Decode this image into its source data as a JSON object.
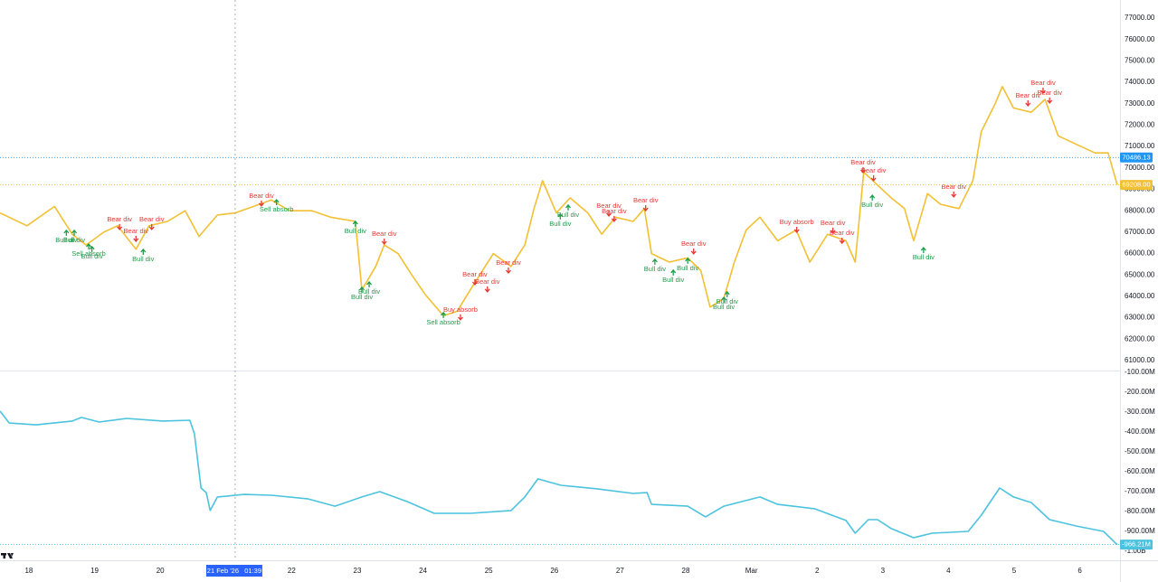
{
  "chart_data": [
    {
      "type": "line",
      "xlim": [
        17.56,
        34.57
      ],
      "xticks": [
        18,
        19,
        20,
        21,
        22,
        23,
        24,
        25,
        26,
        27,
        28,
        {
          "value": 29,
          "label": "Mar"
        },
        {
          "value": 30,
          "label": "2"
        },
        {
          "value": 31,
          "label": "3"
        },
        {
          "value": 32,
          "label": "4"
        },
        {
          "value": 33,
          "label": "5"
        },
        {
          "value": 34,
          "label": "6"
        }
      ],
      "ylim": [
        61000,
        77000
      ],
      "yticks": [
        {
          "value": 61000,
          "label": "61000.00"
        },
        {
          "value": 62000,
          "label": "62000.00"
        },
        {
          "value": 63000,
          "label": "63000.00"
        },
        {
          "value": 64000,
          "label": "64000.00"
        },
        {
          "value": 65000,
          "label": "65000.00"
        },
        {
          "value": 66000,
          "label": "66000.00"
        },
        {
          "value": 67000,
          "label": "67000.00"
        },
        {
          "value": 68000,
          "label": "68000.00"
        },
        {
          "value": 69000,
          "label": "69000.00"
        },
        {
          "value": 70000,
          "label": "70000.00"
        },
        {
          "value": 71000,
          "label": "71000.00"
        },
        {
          "value": 72000,
          "label": "72000.00"
        },
        {
          "value": 73000,
          "label": "73000.00"
        },
        {
          "value": 74000,
          "label": "74000.00"
        },
        {
          "value": 75000,
          "label": "75000.00"
        },
        {
          "value": 76000,
          "label": "76000.00"
        },
        {
          "value": 77000,
          "label": "77000.00"
        }
      ],
      "grid": true,
      "series": [
        {
          "color": "#f2c033",
          "x": [
            17.56,
            17.97,
            18.39,
            18.66,
            18.87,
            19.14,
            19.35,
            19.63,
            19.83,
            20.11,
            20.38,
            20.59,
            20.87,
            21.14,
            21.42,
            21.69,
            21.97,
            22.31,
            22.59,
            22.97,
            23.07,
            23.28,
            23.41,
            23.62,
            23.83,
            24.03,
            24.31,
            24.52,
            24.72,
            25.07,
            25.34,
            25.55,
            25.69,
            25.82,
            26.03,
            26.24,
            26.51,
            26.72,
            26.93,
            27.2,
            27.37,
            27.48,
            27.75,
            28.03,
            28.23,
            28.37,
            28.58,
            28.74,
            28.92,
            29.13,
            29.4,
            29.68,
            29.89,
            30.16,
            30.44,
            30.58,
            30.71,
            30.92,
            31.13,
            31.33,
            31.47,
            31.68,
            31.88,
            32.16,
            32.37,
            32.5,
            32.71,
            32.82,
            32.99,
            33.26,
            33.47,
            33.67,
            33.95,
            34.23,
            34.43,
            34.57
          ],
          "values": [
            67900,
            67300,
            68200,
            66900,
            66400,
            67000,
            67300,
            66200,
            67300,
            67500,
            68000,
            66800,
            67800,
            67900,
            68200,
            68500,
            68000,
            68000,
            67700,
            67500,
            64300,
            65400,
            66400,
            66000,
            65000,
            64100,
            63100,
            63300,
            64300,
            66000,
            65400,
            66400,
            68100,
            69400,
            67900,
            68600,
            67900,
            66900,
            67700,
            67500,
            68100,
            66000,
            65600,
            65800,
            65200,
            63500,
            63900,
            65600,
            67100,
            67700,
            66600,
            67100,
            65600,
            66900,
            66600,
            65600,
            69800,
            69200,
            68600,
            68100,
            66600,
            68800,
            68300,
            68100,
            69400,
            71700,
            73000,
            73800,
            72800,
            72600,
            73200,
            71500,
            71100,
            70700,
            70700,
            69208
          ]
        }
      ],
      "price_labels": [
        {
          "value": 70486.13,
          "label": "70486.13",
          "color": "#2196f3"
        },
        {
          "value": 69208,
          "label": "69208.00",
          "color": "#f2c033"
        }
      ],
      "annotations": [
        {
          "text": "Bear div",
          "x": 19.38,
          "y": 67590,
          "color": "#e53935",
          "arrow": "down"
        },
        {
          "text": "Bear div",
          "x": 19.87,
          "y": 67590,
          "color": "#e53935",
          "arrow": "down"
        },
        {
          "text": "Bear div",
          "x": 19.63,
          "y": 67040,
          "color": "#e53935",
          "arrow": "down"
        },
        {
          "text": "Bear div",
          "x": 21.54,
          "y": 68690,
          "color": "#e53935",
          "arrow": "down"
        },
        {
          "text": "Bear div",
          "x": 23.41,
          "y": 66910,
          "color": "#e53935",
          "arrow": "down"
        },
        {
          "text": "Bear div",
          "x": 24.79,
          "y": 65010,
          "color": "#e53935",
          "arrow": "down"
        },
        {
          "text": "Bear div",
          "x": 24.98,
          "y": 64680,
          "color": "#e53935",
          "arrow": "down"
        },
        {
          "text": "Bear div",
          "x": 25.3,
          "y": 65560,
          "color": "#e53935",
          "arrow": "down"
        },
        {
          "text": "Bear div",
          "x": 26.83,
          "y": 68220,
          "color": "#e53935",
          "arrow": "down"
        },
        {
          "text": "Bear div",
          "x": 26.91,
          "y": 67970,
          "color": "#e53935",
          "arrow": "down"
        },
        {
          "text": "Bear div",
          "x": 27.39,
          "y": 68470,
          "color": "#e53935",
          "arrow": "down"
        },
        {
          "text": "Bear div",
          "x": 28.12,
          "y": 66450,
          "color": "#e53935",
          "arrow": "down"
        },
        {
          "text": "Bear div",
          "x": 30.24,
          "y": 67420,
          "color": "#e53935",
          "arrow": "down"
        },
        {
          "text": "Bear div",
          "x": 30.38,
          "y": 66950,
          "color": "#e53935",
          "arrow": "down"
        },
        {
          "text": "Bear div",
          "x": 30.7,
          "y": 70250,
          "color": "#e53935",
          "arrow": "down"
        },
        {
          "text": "Bear div",
          "x": 30.86,
          "y": 69870,
          "color": "#e53935",
          "arrow": "down"
        },
        {
          "text": "Bear div",
          "x": 32.08,
          "y": 69110,
          "color": "#e53935",
          "arrow": "down"
        },
        {
          "text": "Bear div",
          "x": 33.21,
          "y": 73370,
          "color": "#e53935",
          "arrow": "down"
        },
        {
          "text": "Bear div",
          "x": 33.44,
          "y": 73960,
          "color": "#e53935",
          "arrow": "down"
        },
        {
          "text": "Bear div",
          "x": 33.54,
          "y": 73500,
          "color": "#e53935",
          "arrow": "down"
        },
        {
          "text": "Bull div",
          "x": 18.57,
          "y": 66620,
          "color": "#1e9e4a",
          "arrow": "up"
        },
        {
          "text": "Bull div",
          "x": 18.69,
          "y": 66620,
          "color": "#1e9e4a",
          "arrow": "up"
        },
        {
          "text": "Bull div",
          "x": 18.96,
          "y": 65860,
          "color": "#1e9e4a",
          "arrow": "up"
        },
        {
          "text": "Bull div",
          "x": 19.74,
          "y": 65730,
          "color": "#1e9e4a",
          "arrow": "up"
        },
        {
          "text": "Bull div",
          "x": 22.97,
          "y": 67040,
          "color": "#1e9e4a",
          "arrow": "up"
        },
        {
          "text": "Bull div",
          "x": 23.18,
          "y": 64210,
          "color": "#1e9e4a",
          "arrow": "up"
        },
        {
          "text": "Bull div",
          "x": 23.07,
          "y": 63960,
          "color": "#1e9e4a",
          "arrow": "up"
        },
        {
          "text": "Bull div",
          "x": 26.21,
          "y": 67800,
          "color": "#1e9e4a",
          "arrow": "up"
        },
        {
          "text": "Bull div",
          "x": 26.09,
          "y": 67380,
          "color": "#1e9e4a",
          "arrow": "up"
        },
        {
          "text": "Bull div",
          "x": 27.53,
          "y": 65270,
          "color": "#1e9e4a",
          "arrow": "up"
        },
        {
          "text": "Bull div",
          "x": 27.81,
          "y": 64760,
          "color": "#1e9e4a",
          "arrow": "up"
        },
        {
          "text": "Bull div",
          "x": 28.03,
          "y": 65310,
          "color": "#1e9e4a",
          "arrow": "up"
        },
        {
          "text": "Bull div",
          "x": 28.63,
          "y": 63750,
          "color": "#1e9e4a",
          "arrow": "up"
        },
        {
          "text": "Bull div",
          "x": 28.58,
          "y": 63490,
          "color": "#1e9e4a",
          "arrow": "up"
        },
        {
          "text": "Bull div",
          "x": 30.84,
          "y": 68260,
          "color": "#1e9e4a",
          "arrow": "up"
        },
        {
          "text": "Bull div",
          "x": 31.62,
          "y": 65810,
          "color": "#1e9e4a",
          "arrow": "up"
        },
        {
          "text": "Buy absorb",
          "x": 24.57,
          "y": 63370,
          "color": "#e53935",
          "arrow": "down"
        },
        {
          "text": "Buy absorb",
          "x": 29.69,
          "y": 67460,
          "color": "#e53935",
          "arrow": "down"
        },
        {
          "text": "Sell absorb",
          "x": 18.91,
          "y": 65980,
          "color": "#1e9e4a",
          "arrow": "up"
        },
        {
          "text": "Sell absorb",
          "x": 21.77,
          "y": 68050,
          "color": "#1e9e4a",
          "arrow": "up"
        },
        {
          "text": "Sell absorb",
          "x": 24.31,
          "y": 62780,
          "color": "#1e9e4a",
          "arrow": "up"
        }
      ],
      "crosshair": {
        "x": 21.14,
        "label": "21 Feb '26   01:39"
      }
    },
    {
      "type": "line",
      "xlim": [
        17.56,
        34.57
      ],
      "ylim": [
        -1000,
        -100
      ],
      "yticks": [
        {
          "value": -1000,
          "label": "-1.00B"
        },
        {
          "value": -900,
          "label": "-900.00M"
        },
        {
          "value": -800,
          "label": "-800.00M"
        },
        {
          "value": -700,
          "label": "-700.00M"
        },
        {
          "value": -600,
          "label": "-600.00M"
        },
        {
          "value": -500,
          "label": "-500.00M"
        },
        {
          "value": -400,
          "label": "-400.00M"
        },
        {
          "value": -300,
          "label": "-300.00M"
        },
        {
          "value": -200,
          "label": "-200.00M"
        },
        {
          "value": -100,
          "label": "-100.00M"
        }
      ],
      "grid": true,
      "series": [
        {
          "color": "#4cc3de",
          "x": [
            17.56,
            17.7,
            18.11,
            18.66,
            18.8,
            19.07,
            19.49,
            20.04,
            20.45,
            20.52,
            20.62,
            20.7,
            20.76,
            20.87,
            21.28,
            21.69,
            22.24,
            22.66,
            23.07,
            23.34,
            23.76,
            24.17,
            24.72,
            25.34,
            25.55,
            25.75,
            26.1,
            26.65,
            27.2,
            27.41,
            27.48,
            28.03,
            28.3,
            28.58,
            29.13,
            29.4,
            29.96,
            30.44,
            30.58,
            30.78,
            30.92,
            31.13,
            31.47,
            31.75,
            32.3,
            32.5,
            32.78,
            32.99,
            33.26,
            33.54,
            33.95,
            34.36,
            34.53,
            34.57
          ],
          "values": [
            -295,
            -355,
            -364,
            -345,
            -327,
            -350,
            -332,
            -345,
            -341,
            -409,
            -682,
            -705,
            -795,
            -727,
            -714,
            -718,
            -736,
            -773,
            -727,
            -700,
            -750,
            -809,
            -809,
            -795,
            -727,
            -636,
            -668,
            -686,
            -709,
            -705,
            -764,
            -773,
            -827,
            -773,
            -727,
            -764,
            -786,
            -845,
            -909,
            -841,
            -841,
            -886,
            -932,
            -909,
            -900,
            -818,
            -682,
            -727,
            -755,
            -841,
            -873,
            -900,
            -955,
            -966.21
          ]
        }
      ],
      "price_labels": [
        {
          "value": -966.21,
          "label": "-966.21M",
          "color": "#4cc3de"
        }
      ]
    }
  ]
}
